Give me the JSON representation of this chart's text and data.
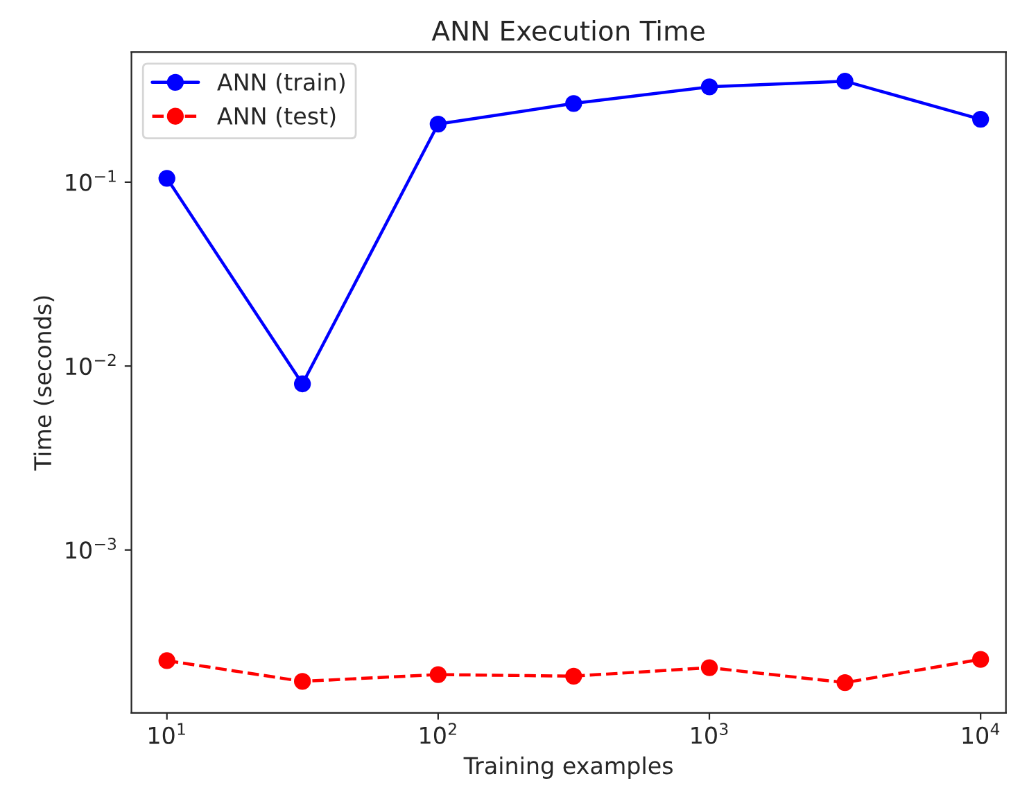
{
  "chart_data": {
    "type": "line",
    "title": "ANN Execution Time",
    "xlabel": "Training examples",
    "ylabel": "Time (seconds)",
    "x": [
      10,
      31.6,
      100,
      316,
      1000,
      3162,
      10000
    ],
    "series": [
      {
        "name": "ANN (train)",
        "color": "#0000ff",
        "line_style": "solid",
        "values": [
          0.105,
          0.008,
          0.207,
          0.268,
          0.33,
          0.354,
          0.22
        ]
      },
      {
        "name": "ANN (test)",
        "color": "#ff0000",
        "line_style": "dashed",
        "values": [
          0.00025,
          0.000193,
          0.00021,
          0.000206,
          0.000229,
          0.00019,
          0.000254
        ]
      }
    ],
    "log": "xy",
    "marker": "circle",
    "legend": "top left",
    "grid": false,
    "xlim": [
      7.4,
      12400
    ],
    "ylim": [
      0.00013,
      0.51
    ],
    "xticks": [
      {
        "value": 10,
        "label": "10$^{1}$"
      },
      {
        "value": 100,
        "label": "10$^{2}$"
      },
      {
        "value": 1000,
        "label": "10$^{3}$"
      },
      {
        "value": 10000,
        "label": "10$^{4}$"
      }
    ],
    "yticks": [
      {
        "value": 0.001,
        "label": "10$^{−3}$"
      },
      {
        "value": 0.01,
        "label": "10$^{−2}$"
      },
      {
        "value": 0.1,
        "label": "10$^{−1}$"
      }
    ]
  }
}
